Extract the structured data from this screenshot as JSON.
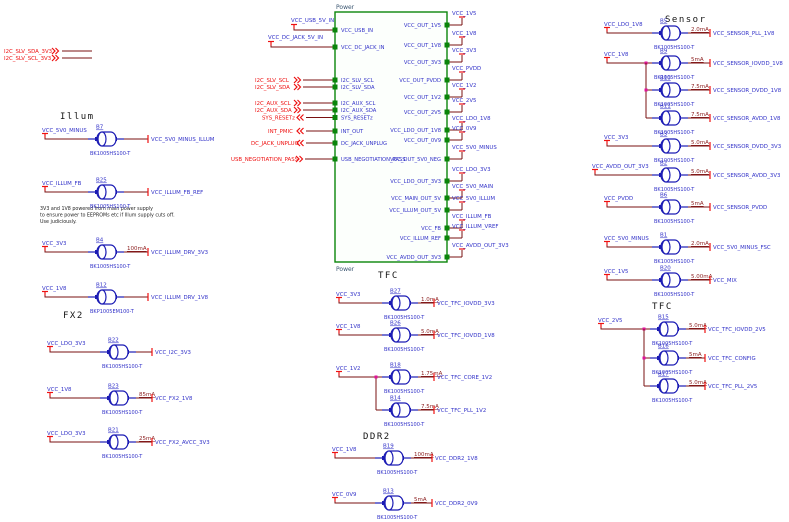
{
  "sheet": {
    "offsheet_connectors": [
      {
        "net": "I2C_SLV_SDA_3V3"
      },
      {
        "net": "I2C_SLV_SCL_3V3"
      }
    ],
    "power_block": {
      "name": "Power",
      "name_bottom": "Power",
      "left_ports": [
        {
          "port": "VCC_USB_IN",
          "net": "VCC_USB_5V_IN"
        },
        {
          "port": "VCC_DC_JACK_IN",
          "net": "VCC_DC_JACK_5V_IN"
        },
        {
          "port": "I2C_SLV_SCL",
          "net": "I2C_SLV_SCL"
        },
        {
          "port": "I2C_SLV_SDA",
          "net": "I2C_SLV_SDA"
        },
        {
          "port": "I2C_AUX_SCL",
          "net": "I2C_AUX_SCL"
        },
        {
          "port": "I2C_AUX_SDA",
          "net": "I2C_AUX_SDA"
        },
        {
          "port": "SYS_RESETz",
          "net": "SYS_RESETz"
        },
        {
          "port": "INT_OUT",
          "net": "INT_PMIC"
        },
        {
          "port": "DC_JACK_UNPLUG",
          "net": "DC_JACK_UNPLUG"
        },
        {
          "port": "USB_NEGOTIATION_PASS",
          "net": "USB_NEGOTIATION_PASS"
        }
      ],
      "right_ports": [
        {
          "port": "VCC_OUT_1V5",
          "net": "VCC_1V5"
        },
        {
          "port": "VCC_OUT_1V8",
          "net": "VCC_1V8"
        },
        {
          "port": "VCC_OUT_3V3",
          "net": "VCC_3V3"
        },
        {
          "port": "VCC_OUT_PVDD",
          "net": "VCC_PVDD"
        },
        {
          "port": "VCC_OUT_1V2",
          "net": "VCC_1V2"
        },
        {
          "port": "VCC_OUT_2V5",
          "net": "VCC_2V5"
        },
        {
          "port": "VCC_LDO_OUT_1V8",
          "net": "VCC_LDO_1V8"
        },
        {
          "port": "VCC_OUT_0V9",
          "net": "VCC_0V9"
        },
        {
          "port": "VCC_OUT_5V0_NEG",
          "net": "VCC_5V0_MINUS"
        },
        {
          "port": "VCC_LDO_OUT_3V3",
          "net": "VCC_LDO_3V3"
        },
        {
          "port": "VCC_MAIN_OUT_5V",
          "net": "VCC_5V0_MAIN"
        },
        {
          "port": "VCC_ILLUM_OUT_5V",
          "net": "VCC_5V0_ILLUM"
        },
        {
          "port": "VCC_FB",
          "net": "VCC_ILLUM_FB"
        },
        {
          "port": "VCC_ILLUM_REF",
          "net": "VCC_ILLUM_VREF"
        },
        {
          "port": "VCC_AVDD_OUT_3V3",
          "net": "VCC_AVDD_OUT_3V3"
        }
      ]
    },
    "sections": [
      {
        "id": "illum",
        "title": "Illum",
        "note": [
          "3V3 and 1V8 powered from main power supply",
          "to ensure power to EEPROMs etc if Illum supply cuts off.",
          "Use judiciously."
        ],
        "rows": [
          {
            "ref": "B7",
            "in": "VCC_5V0_MINUS",
            "out": "VCC_5V0_MINUS_ILLUM",
            "part": "BK1005HS100-T"
          },
          {
            "ref": "B25",
            "in": "VCC_ILLUM_FB",
            "out": "VCC_ILLUM_FB_REF",
            "part": "BK1005HS100-T"
          },
          {
            "ref": "B4",
            "in": "VCC_3V3",
            "current": "100mA",
            "out": "VCC_ILLUM_DRV_3V3",
            "part": "BK1005HS100-T"
          },
          {
            "ref": "B12",
            "in": "VCC_1V8",
            "out": "VCC_ILLUM_DRV_1V8",
            "part": "BKP1005EM100-T"
          }
        ]
      },
      {
        "id": "fx2",
        "title": "FX2",
        "rows": [
          {
            "ref": "B22",
            "in": "VCC_LDO_3V3",
            "out": "VCC_I2C_3V3",
            "part": "BK1005HS100-T"
          },
          {
            "ref": "B23",
            "in": "VCC_1V8",
            "current": "85mA",
            "out": "VCC_FX2_1V8",
            "part": "BK1005HS100-T"
          },
          {
            "ref": "B21",
            "in": "VCC_LDO_3V3",
            "current": "25mA",
            "out": "VCC_FX2_AVCC_3V3",
            "part": "BK1005HS100-T"
          }
        ]
      },
      {
        "id": "tfc_mid",
        "title": "TFC",
        "rows": [
          {
            "ref": "B27",
            "in": "VCC_3V3",
            "current": "1.0mA",
            "out": "VCC_TFC_IOVDD_3V3",
            "part": "BK1005HS100-T"
          },
          {
            "ref": "B26",
            "in": "VCC_1V8",
            "current": "5.0mA",
            "out": "VCC_TFC_IOVDD_1V8",
            "part": "BK1005HS100-T"
          },
          {
            "ref": "B18",
            "in": "VCC_1V2",
            "current": "1.75mA",
            "out": "VCC_TFC_CORE_1V2",
            "part": "BK1005HS100-T"
          },
          {
            "ref": "B14",
            "joined": true,
            "current": "7.5mA",
            "out": "VCC_TFC_PLL_1V2",
            "part": "BK1005HS100-T"
          }
        ]
      },
      {
        "id": "ddr2",
        "title": "DDR2",
        "rows": [
          {
            "ref": "B19",
            "in": "VCC_1V8",
            "current": "100mA",
            "out": "VCC_DDR2_1V8",
            "part": "BK1005HS100-T"
          },
          {
            "ref": "B13",
            "in": "VCC_0V9",
            "current": "5mA",
            "out": "VCC_DDR2_0V9",
            "part": "BK1005HS100-T"
          }
        ]
      },
      {
        "id": "sensor",
        "title": "Sensor",
        "rows": [
          {
            "ref": "B5",
            "in": "VCC_LDO_1V8",
            "current": "2.0mA",
            "out": "VCC_SENSOR_PLL_1V8",
            "part": "BK1005HS100-T"
          },
          {
            "ref": "B9",
            "in": "VCC_1V8",
            "current": "5mA",
            "out": "VCC_SENSOR_IOVDD_1V8",
            "part": "BK1005HS100-T"
          },
          {
            "ref": "B10",
            "joined": true,
            "current": "7.5mA",
            "out": "VCC_SENSOR_DVDD_1V8",
            "part": "BK1005HS100-T"
          },
          {
            "ref": "B11",
            "joined": true,
            "current": "7.5mA",
            "out": "VCC_SENSOR_AVDD_1V8",
            "part": "BK1005HS100-T"
          },
          {
            "ref": "B3",
            "in": "VCC_3V3",
            "current": "5.0mA",
            "out": "VCC_SENSOR_DVDD_3V3",
            "part": "BK1005HS100-T"
          },
          {
            "ref": "B2",
            "in": "VCC_AVDD_OUT_3V3",
            "current": "5.0mA",
            "out": "VCC_SENSOR_AVDD_3V3",
            "part": "BK1005HS100-T"
          },
          {
            "ref": "B6",
            "in": "VCC_PVDD",
            "current": "5mA",
            "out": "VCC_SENSOR_PVDD",
            "part": "BK1005HS100-T"
          },
          {
            "ref": "B1",
            "in": "VCC_5V0_MINUS",
            "current": "2.0mA",
            "out": "VCC_5V0_MINUS_FSC",
            "part": "BK1005HS100-T"
          },
          {
            "ref": "B20",
            "in": "VCC_1V5",
            "current": "5.00mA",
            "out": "VCC_MIX",
            "part": "BK1005HS100-T"
          }
        ]
      },
      {
        "id": "tfc_right",
        "title": "TFC",
        "rows": [
          {
            "ref": "B15",
            "in": "VCC_2V5",
            "current": "5.0mA",
            "out": "VCC_TFC_IOVDD_2V5",
            "part": "BK1005HS100-T"
          },
          {
            "ref": "B16",
            "joined": true,
            "current": "5mA",
            "out": "VCC_TFC_CONFIG",
            "part": "BK1005HS100-T"
          },
          {
            "ref": "B17",
            "joined": true,
            "current": "5.0mA",
            "out": "VCC_TFC_PLL_2V5",
            "part": "BK1005HS100-T"
          }
        ]
      }
    ]
  }
}
